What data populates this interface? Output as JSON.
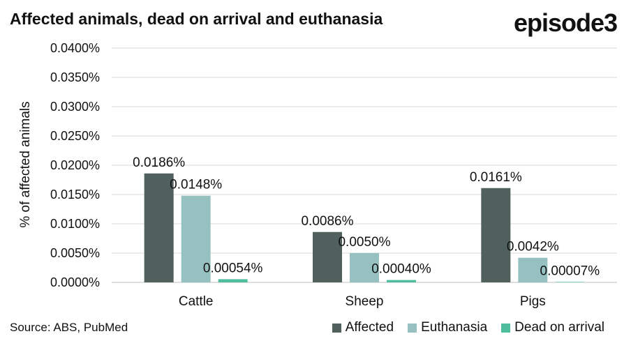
{
  "header": {
    "title": "Affected animals, dead on arrival and euthanasia",
    "brand": "episode3"
  },
  "footer": {
    "source": "Source: ABS, PubMed"
  },
  "colors": {
    "affected": "#4f605d",
    "euthanasia": "#97c1c0",
    "dead_on_arrival": "#4dbd9e",
    "grid": "#d9d9d9"
  },
  "chart_data": {
    "type": "bar",
    "title": "Affected animals, dead on arrival and euthanasia",
    "xlabel": "",
    "ylabel": "% of affected animals",
    "categories": [
      "Cattle",
      "Sheep",
      "Pigs"
    ],
    "series": [
      {
        "name": "Affected",
        "values": [
          0.0186,
          0.0086,
          0.0161
        ],
        "labels": [
          "0.0186%",
          "0.0086%",
          "0.0161%"
        ]
      },
      {
        "name": "Euthanasia",
        "values": [
          0.0148,
          0.005,
          0.0042
        ],
        "labels": [
          "0.0148%",
          "0.0050%",
          "0.0042%"
        ]
      },
      {
        "name": "Dead on arrival",
        "values": [
          0.00054,
          0.0004,
          7e-05
        ],
        "labels": [
          "0.00054%",
          "0.00040%",
          "0.00007%"
        ]
      }
    ],
    "ylim": [
      0,
      0.04
    ],
    "yticks": [
      0,
      0.005,
      0.01,
      0.015,
      0.02,
      0.025,
      0.03,
      0.035,
      0.04
    ],
    "ytick_labels": [
      "0.0000%",
      "0.0050%",
      "0.0100%",
      "0.0150%",
      "0.0200%",
      "0.0250%",
      "0.0300%",
      "0.0350%",
      "0.0400%"
    ],
    "grid": true,
    "legend": "bottom-right"
  }
}
